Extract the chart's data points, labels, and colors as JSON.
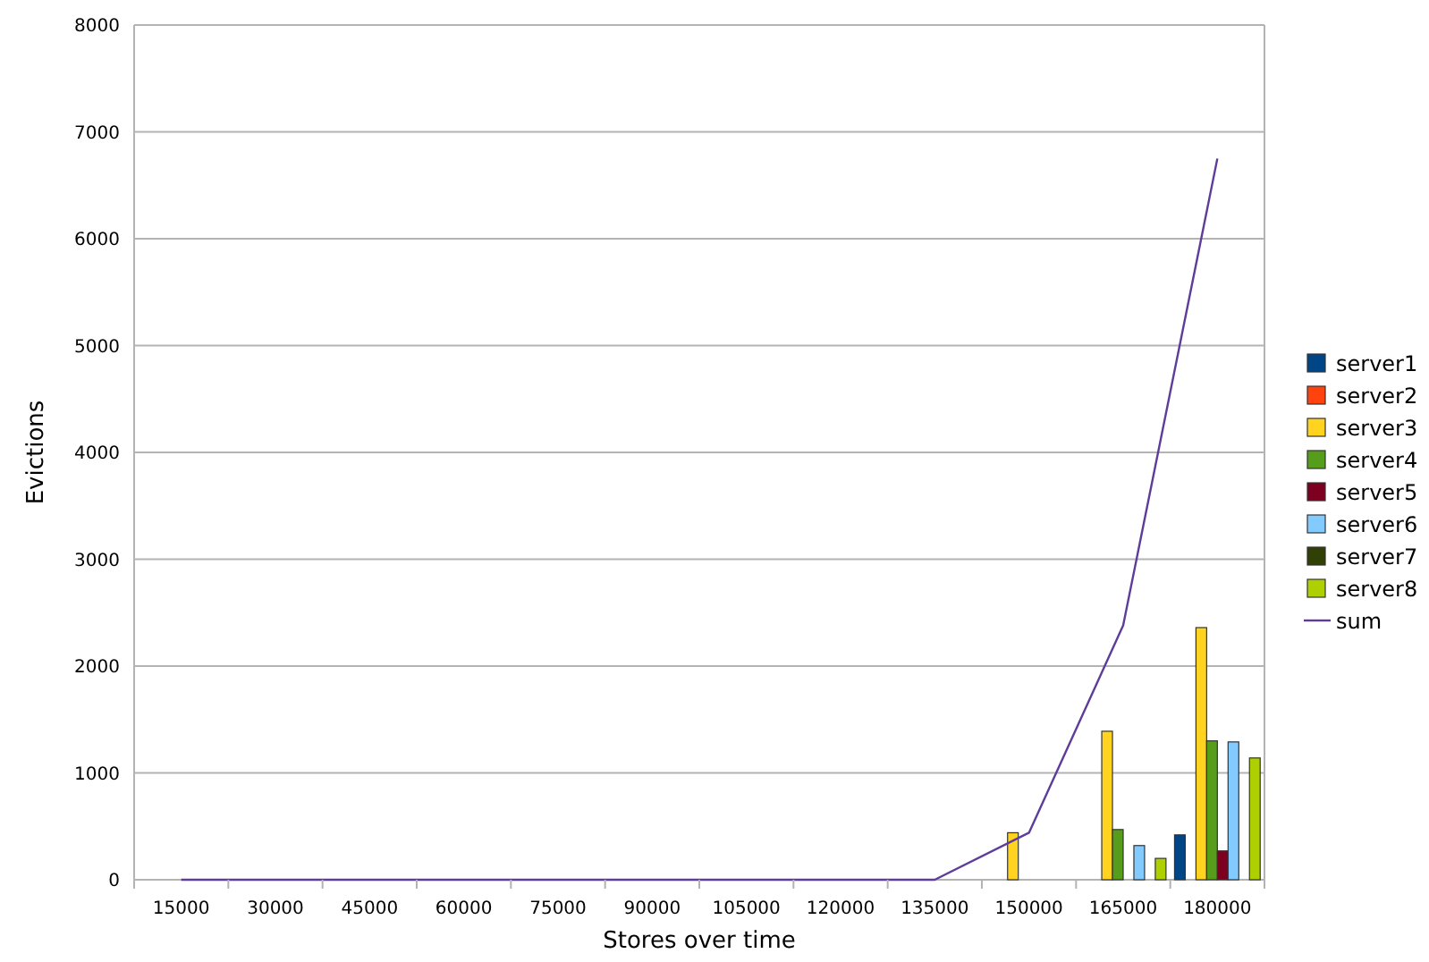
{
  "chart_data": {
    "type": "bar",
    "xlabel": "Stores over time",
    "ylabel": "Evictions",
    "categories": [
      "15000",
      "30000",
      "45000",
      "60000",
      "75000",
      "90000",
      "105000",
      "120000",
      "135000",
      "150000",
      "165000",
      "180000"
    ],
    "series": [
      {
        "name": "server1",
        "color": "#004586",
        "values": [
          null,
          null,
          null,
          null,
          null,
          null,
          null,
          null,
          null,
          null,
          null,
          420
        ]
      },
      {
        "name": "server2",
        "color": "#ff420e",
        "values": [
          null,
          null,
          null,
          null,
          null,
          null,
          null,
          null,
          null,
          null,
          null,
          null
        ]
      },
      {
        "name": "server3",
        "color": "#ffd320",
        "values": [
          null,
          null,
          null,
          null,
          null,
          null,
          null,
          null,
          null,
          440,
          1390,
          2360
        ]
      },
      {
        "name": "server4",
        "color": "#579d1c",
        "values": [
          null,
          null,
          null,
          null,
          null,
          null,
          null,
          null,
          null,
          null,
          470,
          1300
        ]
      },
      {
        "name": "server5",
        "color": "#7e0021",
        "values": [
          null,
          null,
          null,
          null,
          null,
          null,
          null,
          null,
          null,
          null,
          null,
          270
        ]
      },
      {
        "name": "server6",
        "color": "#83caff",
        "values": [
          null,
          null,
          null,
          null,
          null,
          null,
          null,
          null,
          null,
          null,
          320,
          1290
        ]
      },
      {
        "name": "server7",
        "color": "#314004",
        "values": [
          null,
          null,
          null,
          null,
          null,
          null,
          null,
          null,
          null,
          null,
          null,
          null
        ]
      },
      {
        "name": "server8",
        "color": "#aecf00",
        "values": [
          null,
          null,
          null,
          null,
          null,
          null,
          null,
          null,
          null,
          null,
          200,
          1140
        ]
      },
      {
        "name": "sum",
        "type": "line",
        "color": "#5e3c99",
        "values": [
          0,
          0,
          0,
          0,
          0,
          0,
          0,
          0,
          0,
          440,
          2380,
          6750
        ]
      }
    ],
    "ylim": [
      0,
      8000
    ],
    "yticks": [
      0,
      1000,
      2000,
      3000,
      4000,
      5000,
      6000,
      7000,
      8000
    ],
    "grid": "y",
    "legend": "right"
  }
}
